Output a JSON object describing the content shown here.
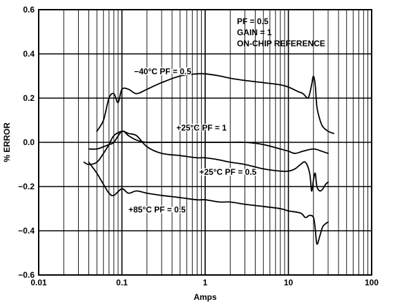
{
  "chart_data": {
    "type": "line",
    "xscale": "log",
    "xlim": [
      0.01,
      100
    ],
    "ylim": [
      -0.6,
      0.6
    ],
    "xlabel": "Amps",
    "ylabel": "% ERROR",
    "grid": true,
    "x_ticks": [
      {
        "value": 0.01,
        "label": "0.01"
      },
      {
        "value": 0.1,
        "label": "0.1"
      },
      {
        "value": 1,
        "label": "1"
      },
      {
        "value": 10,
        "label": "10"
      },
      {
        "value": 100,
        "label": "100"
      }
    ],
    "y_ticks": [
      {
        "value": 0.6,
        "label": "0.6"
      },
      {
        "value": 0.4,
        "label": "0.4"
      },
      {
        "value": 0.2,
        "label": "0.2"
      },
      {
        "value": 0.0,
        "label": "0.0"
      },
      {
        "value": -0.2,
        "label": "−0.2"
      },
      {
        "value": -0.4,
        "label": "−0.4"
      },
      {
        "value": -0.6,
        "label": "−0.6"
      }
    ],
    "notes": [
      "PF = 0.5",
      "GAIN = 1",
      "ON-CHIP REFERENCE"
    ],
    "series": [
      {
        "label": "−40°C  PF = 0.5",
        "label_at": [
          0.14,
          0.32
        ],
        "x": [
          0.05,
          0.06,
          0.07,
          0.08,
          0.09,
          0.1,
          0.12,
          0.15,
          0.2,
          0.3,
          0.5,
          0.8,
          1,
          1.5,
          2,
          3,
          5,
          8,
          10,
          13,
          15,
          17,
          18,
          19,
          20,
          21,
          22,
          24,
          26,
          30,
          35
        ],
        "y": [
          0.05,
          0.1,
          0.2,
          0.22,
          0.18,
          0.24,
          0.24,
          0.22,
          0.24,
          0.27,
          0.3,
          0.31,
          0.31,
          0.3,
          0.29,
          0.28,
          0.27,
          0.26,
          0.25,
          0.23,
          0.22,
          0.2,
          0.22,
          0.26,
          0.3,
          0.26,
          0.16,
          0.1,
          0.07,
          0.05,
          0.04
        ]
      },
      {
        "label": "+25°C  PF = 1",
        "label_at": [
          0.45,
          0.065
        ],
        "x": [
          0.04,
          0.05,
          0.06,
          0.07,
          0.08,
          0.1,
          0.12,
          0.15,
          0.2,
          0.3,
          0.5,
          0.8,
          1,
          1.5,
          2,
          3,
          5,
          8,
          10,
          12,
          15,
          20,
          25,
          30
        ],
        "y": [
          -0.03,
          -0.03,
          -0.02,
          -0.01,
          0.0,
          0.05,
          0.03,
          0.01,
          0.0,
          0.0,
          0.0,
          0.0,
          0.0,
          0.0,
          0.0,
          0.0,
          -0.01,
          -0.03,
          -0.04,
          -0.05,
          -0.04,
          -0.03,
          -0.04,
          -0.05
        ]
      },
      {
        "label": "+25°C  PF = 0.5",
        "label_at": [
          0.85,
          -0.135
        ],
        "x": [
          0.035,
          0.04,
          0.05,
          0.06,
          0.07,
          0.08,
          0.1,
          0.12,
          0.15,
          0.2,
          0.3,
          0.5,
          0.8,
          1,
          1.5,
          2,
          3,
          5,
          8,
          10,
          12,
          14,
          16,
          18,
          19,
          20,
          21,
          22,
          24,
          26,
          28,
          30
        ],
        "y": [
          -0.09,
          -0.1,
          -0.09,
          -0.05,
          -0.01,
          0.03,
          0.05,
          0.04,
          0.03,
          -0.02,
          -0.05,
          -0.06,
          -0.07,
          -0.07,
          -0.08,
          -0.09,
          -0.1,
          -0.12,
          -0.13,
          -0.13,
          -0.12,
          -0.1,
          -0.09,
          -0.14,
          -0.22,
          -0.17,
          -0.14,
          -0.2,
          -0.22,
          -0.21,
          -0.19,
          -0.18
        ]
      },
      {
        "label": "+85°C  PF = 0.5",
        "label_at": [
          0.12,
          -0.305
        ],
        "x": [
          0.04,
          0.05,
          0.06,
          0.07,
          0.08,
          0.1,
          0.12,
          0.15,
          0.2,
          0.3,
          0.5,
          0.8,
          1,
          1.5,
          2,
          3,
          5,
          8,
          10,
          14,
          16,
          18,
          20,
          21,
          22,
          24,
          26,
          30
        ],
        "y": [
          -0.09,
          -0.14,
          -0.19,
          -0.23,
          -0.24,
          -0.21,
          -0.23,
          -0.22,
          -0.23,
          -0.24,
          -0.25,
          -0.26,
          -0.26,
          -0.27,
          -0.27,
          -0.28,
          -0.29,
          -0.3,
          -0.31,
          -0.32,
          -0.34,
          -0.33,
          -0.34,
          -0.39,
          -0.46,
          -0.42,
          -0.38,
          -0.36
        ]
      }
    ]
  }
}
